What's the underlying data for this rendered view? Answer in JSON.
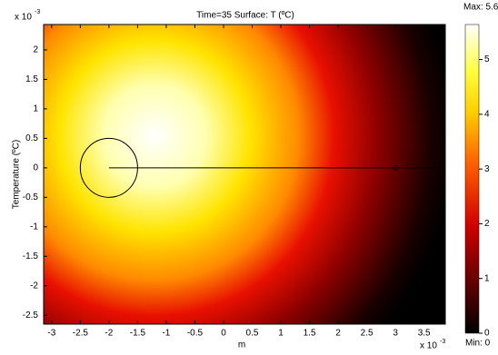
{
  "chart_data": {
    "type": "surface",
    "title": "Time=35  Surface: T (ºC)",
    "x_label": "m",
    "y_label": "Temperature (ºC)",
    "exponent_base": "x 10",
    "exponent_power": "-3",
    "xlim": [
      -3.14,
      3.87
    ],
    "ylim": [
      -2.65,
      2.43
    ],
    "xticks": [
      -3,
      -2.5,
      -2,
      -1.5,
      -1,
      -0.5,
      0,
      0.5,
      1,
      1.5,
      2,
      2.5,
      3,
      3.5
    ],
    "yticks": [
      -2.5,
      -2,
      -1.5,
      -1,
      -0.5,
      0,
      0.5,
      1,
      1.5,
      2
    ],
    "circle": {
      "center": [
        -2,
        0
      ],
      "radius": 0.5
    },
    "line": {
      "x": [
        -2,
        3.7
      ],
      "y": [
        0,
        0
      ]
    },
    "point": {
      "x": 3,
      "y": 0
    },
    "colorbar": {
      "max_label": "Max: 5.64",
      "min_label": "Min: 0",
      "lim": [
        0,
        5.64
      ],
      "ticks": [
        0,
        1,
        2,
        3,
        4,
        5
      ]
    }
  }
}
